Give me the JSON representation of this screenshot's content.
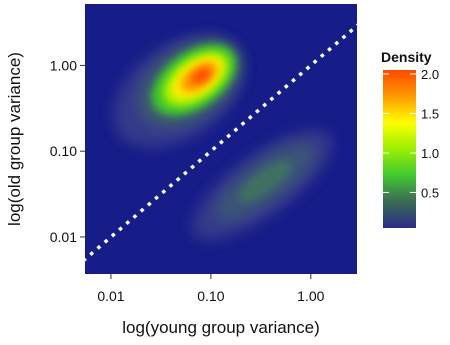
{
  "chart_data": {
    "type": "heatmap",
    "subtype": "2d-density",
    "xlabel": "log(young group variance)",
    "ylabel": "log(old group variance)",
    "x_scale": "log10",
    "y_scale": "log10",
    "xlim": [
      0.0055,
      2.9
    ],
    "ylim": [
      0.0037,
      5.2
    ],
    "x_ticks": [
      0.01,
      0.1,
      1.0
    ],
    "x_tick_labels": [
      "0.01",
      "0.10",
      "1.00"
    ],
    "y_ticks": [
      0.01,
      0.1,
      1.0
    ],
    "y_tick_labels": [
      "0.01",
      "0.10",
      "1.00"
    ],
    "background_color": "#161c88",
    "reference_line": {
      "type": "y=x",
      "style": "dotted",
      "color": "#ffffff"
    },
    "density_clusters": [
      {
        "x_center": 0.07,
        "y_center": 0.72,
        "peak_density": 2.0,
        "orientation": "diagonal"
      },
      {
        "x_center": 0.4,
        "y_center": 0.04,
        "peak_density": 0.5,
        "orientation": "diagonal"
      }
    ],
    "legend": {
      "title": "Density",
      "placement": "right",
      "ticks": [
        2.0,
        1.5,
        1.0,
        0.5
      ],
      "tick_labels": [
        "2.0",
        "1.5",
        "1.0",
        "0.5"
      ],
      "range": [
        0.05,
        2.05
      ],
      "colors": [
        "#2a2c86",
        "#3b6a55",
        "#42c830",
        "#9af000",
        "#ffff00",
        "#ff9900",
        "#ff4a00"
      ]
    }
  }
}
